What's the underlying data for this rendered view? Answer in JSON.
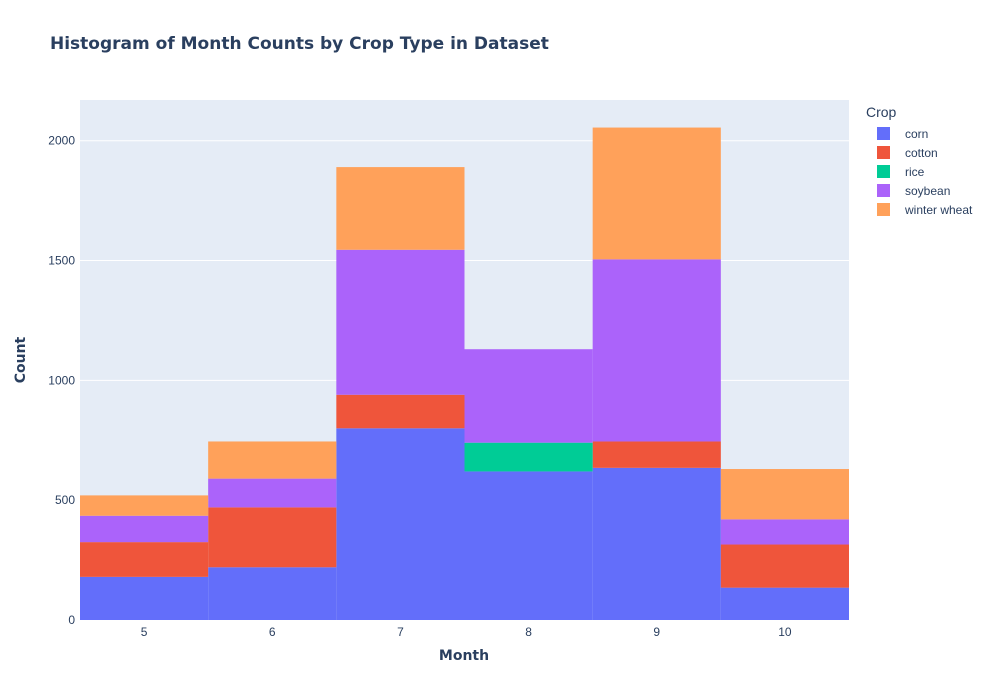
{
  "chart_data": {
    "type": "bar",
    "stacked": true,
    "title": "Histogram of Month Counts by Crop Type in Dataset",
    "xlabel": "Month",
    "ylabel": "Count",
    "categories": [
      "5",
      "6",
      "7",
      "8",
      "9",
      "10"
    ],
    "ylim": [
      0,
      2170
    ],
    "yticks": [
      0,
      500,
      1000,
      1500,
      2000
    ],
    "grid": true,
    "legend_title": "Crop",
    "legend_position": "right",
    "series": [
      {
        "name": "corn",
        "color": "#636efa",
        "values": [
          180,
          220,
          800,
          620,
          635,
          135
        ]
      },
      {
        "name": "cotton",
        "color": "#ef553b",
        "values": [
          145,
          250,
          140,
          0,
          110,
          180
        ]
      },
      {
        "name": "rice",
        "color": "#00cc96",
        "values": [
          0,
          0,
          0,
          120,
          0,
          0
        ]
      },
      {
        "name": "soybean",
        "color": "#ab63fa",
        "values": [
          110,
          120,
          605,
          390,
          760,
          105
        ]
      },
      {
        "name": "winter wheat",
        "color": "#ffa15a",
        "values": [
          85,
          155,
          345,
          0,
          550,
          210
        ]
      }
    ]
  }
}
